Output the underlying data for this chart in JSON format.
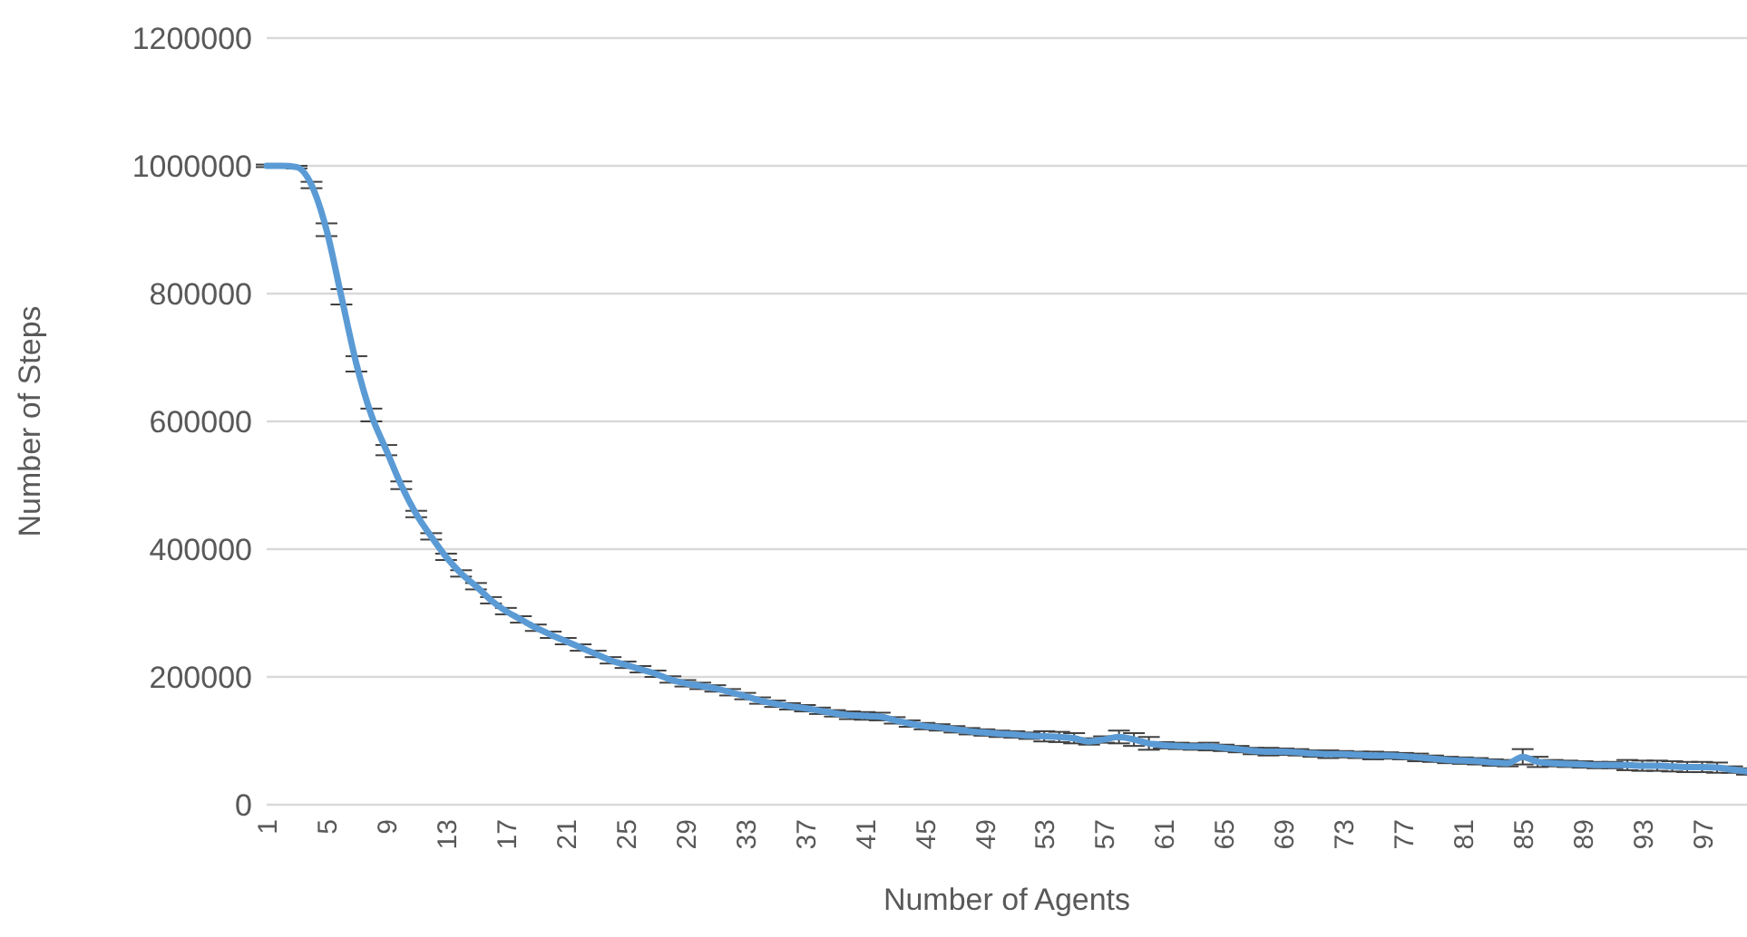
{
  "chart_data": {
    "type": "line",
    "xlabel": "Number of Agents",
    "ylabel": "Number of Steps",
    "categories": [
      "1",
      null,
      null,
      null,
      "5",
      null,
      null,
      null,
      "9",
      null,
      null,
      null,
      "13",
      null,
      null,
      null,
      "17",
      null,
      null,
      null,
      "21",
      null,
      null,
      null,
      "25",
      null,
      null,
      null,
      "29",
      null,
      null,
      null,
      "33",
      null,
      null,
      null,
      "37",
      null,
      null,
      null,
      "41",
      null,
      null,
      null,
      "45",
      null,
      null,
      null,
      "49",
      null,
      null,
      null,
      "53",
      null,
      null,
      null,
      "57",
      null,
      null,
      null,
      "61",
      null,
      null,
      null,
      "65",
      null,
      null,
      null,
      "69",
      null,
      null,
      null,
      "73",
      null,
      null,
      null,
      "77",
      null,
      null,
      null,
      "81",
      null,
      null,
      null,
      "85",
      null,
      null,
      null,
      "89",
      null,
      null,
      null,
      "93",
      null,
      null,
      null,
      "97",
      null,
      null,
      null
    ],
    "series": [
      {
        "color": "#5b9bd5",
        "values": [
          1000000,
          1000000,
          998000,
          970000,
          900000,
          795000,
          690000,
          610000,
          555000,
          500000,
          455000,
          420000,
          388000,
          362000,
          342000,
          320000,
          303000,
          290000,
          277000,
          266000,
          256000,
          246000,
          236000,
          226000,
          219000,
          212000,
          205000,
          196000,
          190000,
          186000,
          182000,
          176000,
          170000,
          163000,
          158000,
          154000,
          151000,
          147000,
          143000,
          140000,
          139000,
          138000,
          132000,
          127000,
          123000,
          121000,
          118000,
          115000,
          113000,
          111000,
          110000,
          108000,
          107000,
          106000,
          104000,
          99000,
          102000,
          106000,
          102000,
          96000,
          93000,
          92000,
          91000,
          91000,
          89000,
          87000,
          84000,
          83000,
          83000,
          82000,
          80000,
          79000,
          79000,
          78000,
          77000,
          77000,
          76000,
          74000,
          72000,
          70000,
          69000,
          68000,
          66000,
          65000,
          75000,
          67000,
          65000,
          64000,
          63000,
          62000,
          62000,
          62000,
          61000,
          61000,
          60000,
          59000,
          59000,
          58000,
          55000,
          52000
        ],
        "errors": [
          2000,
          2000,
          2000,
          5000,
          10000,
          12000,
          12000,
          10000,
          8000,
          6000,
          5000,
          5000,
          5000,
          5000,
          5000,
          5000,
          5000,
          5000,
          5000,
          5000,
          5000,
          5000,
          5000,
          5000,
          5000,
          5000,
          5000,
          5000,
          5000,
          5000,
          5000,
          5000,
          5000,
          5000,
          5000,
          5000,
          5000,
          5000,
          5000,
          6000,
          6000,
          6000,
          5000,
          5000,
          5000,
          5000,
          5000,
          5000,
          5000,
          5000,
          5000,
          5000,
          8000,
          8000,
          8000,
          5000,
          5000,
          10000,
          10000,
          10000,
          5000,
          5000,
          5000,
          6000,
          5000,
          5000,
          5000,
          6000,
          5000,
          5000,
          5000,
          6000,
          5000,
          5000,
          6000,
          5000,
          5000,
          6000,
          5000,
          5000,
          5000,
          5000,
          5000,
          5000,
          12000,
          8000,
          5000,
          5000,
          5000,
          5000,
          5000,
          8000,
          8000,
          8000,
          8000,
          8000,
          8000,
          8000,
          5000,
          5000
        ]
      }
    ],
    "ylim": [
      0,
      1200000
    ],
    "yticks": [
      0,
      200000,
      400000,
      600000,
      800000,
      1000000,
      1200000
    ],
    "grid": "y",
    "legend": false,
    "marker": "none",
    "line_style": "solid"
  }
}
